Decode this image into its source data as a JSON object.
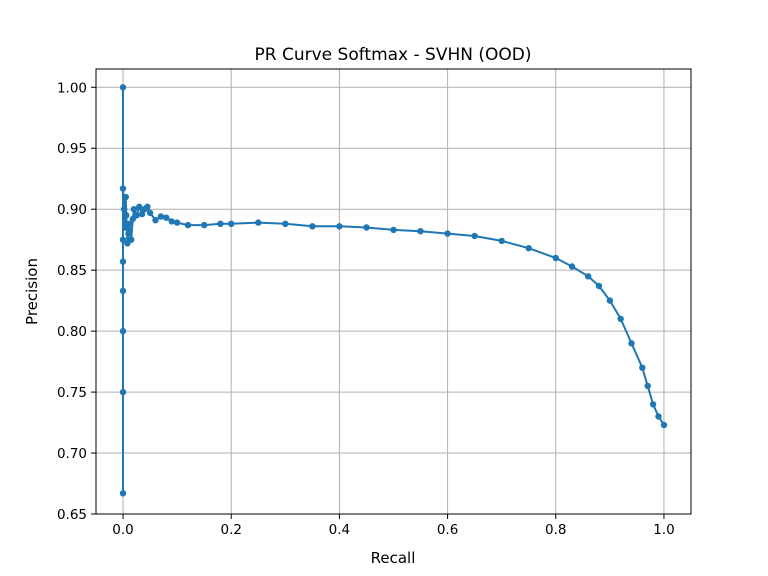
{
  "chart_data": {
    "type": "line",
    "title": "PR Curve Softmax - SVHN (OOD)",
    "xlabel": "Recall",
    "ylabel": "Precision",
    "xlim": [
      -0.05,
      1.05
    ],
    "ylim": [
      0.65,
      1.015
    ],
    "grid": true,
    "legend": "none",
    "x_ticks": [
      "0.0",
      "0.2",
      "0.4",
      "0.6",
      "0.8",
      "1.0"
    ],
    "x_tick_values": [
      0.0,
      0.2,
      0.4,
      0.6,
      0.8,
      1.0
    ],
    "y_ticks": [
      "0.65",
      "0.70",
      "0.75",
      "0.80",
      "0.85",
      "0.90",
      "0.95",
      "1.00"
    ],
    "y_tick_values": [
      0.65,
      0.7,
      0.75,
      0.8,
      0.85,
      0.9,
      0.95,
      1.0
    ],
    "color": "#1f77b4",
    "marker": "circle",
    "series": [
      {
        "x": [
          0.0,
          0.0,
          0.0,
          0.0,
          0.0,
          0.0,
          0.0,
          0.0,
          0.002,
          0.004,
          0.005,
          0.006,
          0.008,
          0.01,
          0.012,
          0.015,
          0.018,
          0.02,
          0.025,
          0.03,
          0.035,
          0.04,
          0.045,
          0.05,
          0.06,
          0.07,
          0.08,
          0.09,
          0.1,
          0.12,
          0.15,
          0.18,
          0.2,
          0.25,
          0.3,
          0.35,
          0.4,
          0.45,
          0.5,
          0.55,
          0.6,
          0.65,
          0.7,
          0.75,
          0.8,
          0.83,
          0.86,
          0.88,
          0.9,
          0.92,
          0.94,
          0.96,
          0.97,
          0.98,
          0.99,
          1.0
        ],
        "y": [
          1.0,
          0.667,
          0.75,
          0.8,
          0.833,
          0.857,
          0.875,
          0.917,
          0.9,
          0.885,
          0.91,
          0.895,
          0.872,
          0.88,
          0.888,
          0.875,
          0.892,
          0.9,
          0.895,
          0.902,
          0.896,
          0.9,
          0.902,
          0.897,
          0.891,
          0.894,
          0.893,
          0.89,
          0.889,
          0.887,
          0.887,
          0.888,
          0.888,
          0.889,
          0.888,
          0.886,
          0.886,
          0.885,
          0.883,
          0.882,
          0.88,
          0.878,
          0.874,
          0.868,
          0.86,
          0.853,
          0.845,
          0.837,
          0.825,
          0.81,
          0.79,
          0.77,
          0.755,
          0.74,
          0.73,
          0.723
        ]
      }
    ]
  }
}
